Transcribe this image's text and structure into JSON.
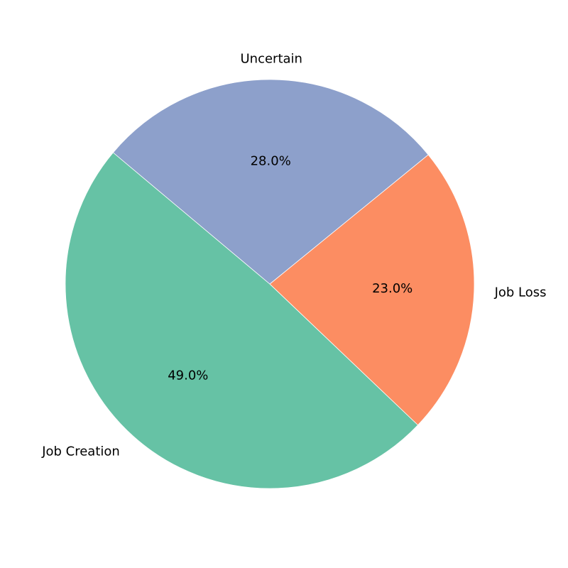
{
  "chart_data": {
    "type": "pie",
    "title": "",
    "categories": [
      "Job Creation",
      "Job Loss",
      "Uncertain"
    ],
    "values": [
      49.0,
      23.0,
      28.0
    ],
    "value_labels": [
      "49.0%",
      "23.0%",
      "28.0%"
    ],
    "colors": [
      "#66c2a5",
      "#fc8d62",
      "#8da0cb"
    ],
    "start_angle_deg": 140,
    "direction": "counterclockwise",
    "legend": "none",
    "edge_color": "#ffffff"
  }
}
